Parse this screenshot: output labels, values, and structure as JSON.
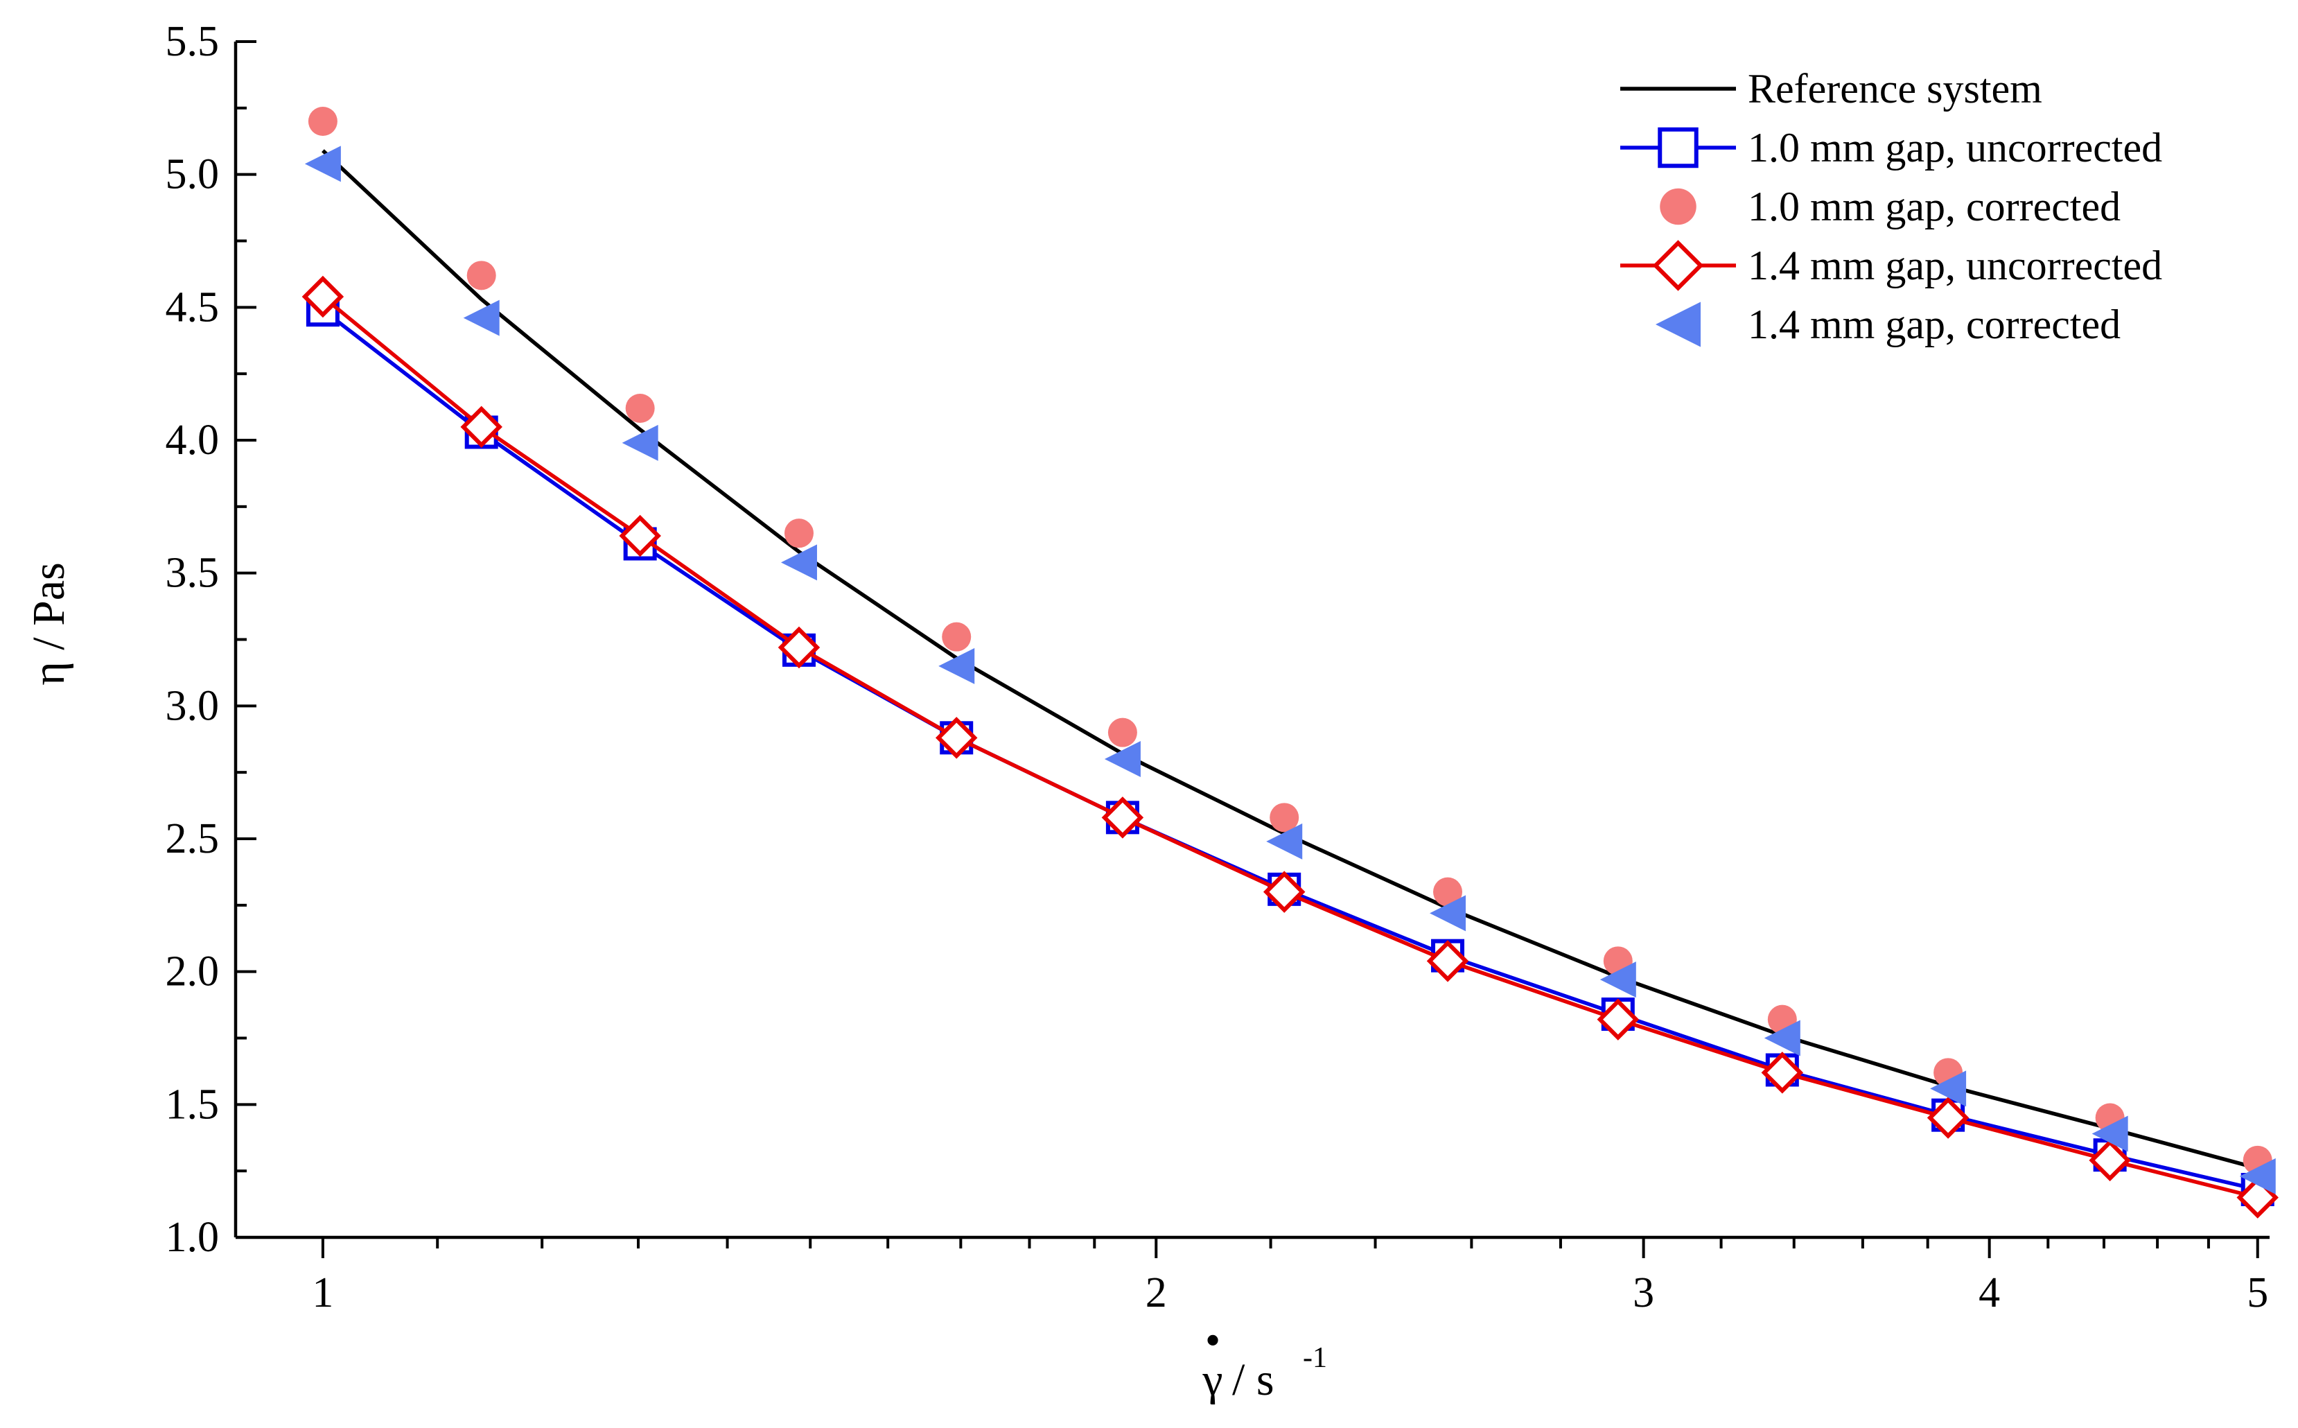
{
  "chart_data": {
    "type": "line",
    "title": "",
    "xlabel": "γ̇ / s⁻¹",
    "xlabel_base": "γ",
    "xlabel_dot": "•",
    "xlabel_unit": "/ s",
    "xlabel_exp": "-1",
    "ylabel": "η / Pas",
    "x_scale": "log",
    "xlim": [
      0.93,
      5.05
    ],
    "ylim": [
      1.0,
      5.5
    ],
    "x_ticks": [
      1,
      2,
      3,
      4,
      5
    ],
    "x_tick_labels": [
      "1",
      "2",
      "3",
      "4",
      "5"
    ],
    "y_ticks": [
      1.0,
      1.5,
      2.0,
      2.5,
      3.0,
      3.5,
      4.0,
      4.5,
      5.0,
      5.5
    ],
    "y_tick_labels": [
      "1.0",
      "1.5",
      "2.0",
      "2.5",
      "3.0",
      "3.5",
      "4.0",
      "4.5",
      "5.0",
      "5.5"
    ],
    "grid": false,
    "legend_position": "top-right",
    "x": [
      1.0,
      1.141,
      1.302,
      1.486,
      1.694,
      1.945,
      2.225,
      2.549,
      2.937,
      3.367,
      3.865,
      4.422,
      5.0
    ],
    "series": [
      {
        "name": "Reference system",
        "style": "line",
        "color": "#000000",
        "values": [
          5.09,
          4.53,
          4.04,
          3.58,
          3.18,
          2.82,
          2.52,
          2.24,
          1.98,
          1.76,
          1.57,
          1.41,
          1.26
        ]
      },
      {
        "name": "1.0 mm gap, uncorrected",
        "style": "line-square",
        "color": "#0000e6",
        "values": [
          4.49,
          4.03,
          3.61,
          3.21,
          2.88,
          2.58,
          2.31,
          2.06,
          1.84,
          1.63,
          1.46,
          1.31,
          1.18
        ]
      },
      {
        "name": "1.0 mm gap, corrected",
        "style": "circle",
        "color": "#f47a7a",
        "values": [
          5.2,
          4.62,
          4.12,
          3.65,
          3.26,
          2.9,
          2.58,
          2.3,
          2.04,
          1.82,
          1.62,
          1.45,
          1.29
        ]
      },
      {
        "name": "1.4 mm gap, uncorrected",
        "style": "line-diamond",
        "color": "#e60000",
        "values": [
          4.54,
          4.05,
          3.64,
          3.22,
          2.88,
          2.58,
          2.3,
          2.04,
          1.82,
          1.62,
          1.45,
          1.29,
          1.15
        ]
      },
      {
        "name": "1.4 mm gap, corrected",
        "style": "triangle",
        "color": "#5a7ff0",
        "values": [
          5.04,
          4.46,
          3.99,
          3.54,
          3.15,
          2.8,
          2.49,
          2.22,
          1.97,
          1.75,
          1.56,
          1.39,
          1.23
        ]
      }
    ]
  }
}
